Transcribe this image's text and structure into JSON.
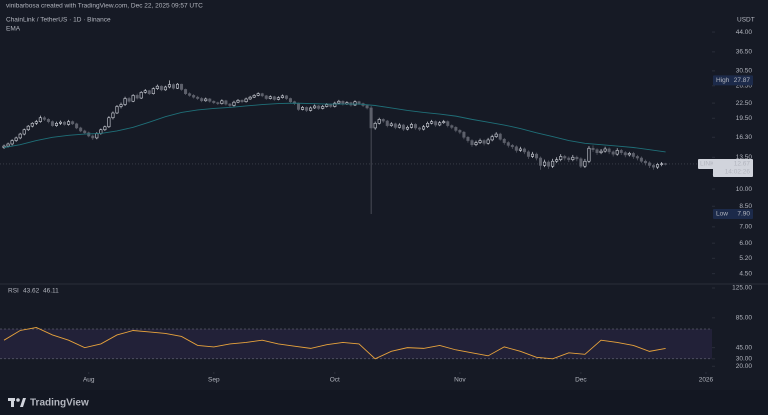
{
  "credit": "vinibarbosa created with TradingView.com, Dec 22, 2025 09:57 UTC",
  "brand": "TradingView",
  "chart_data": [
    {
      "type": "candlestick",
      "title": "ChainLink / TetherUS · 1D · Binance",
      "currency": "USDT",
      "log": true,
      "grid": false,
      "up_color": "#d1d4dc",
      "down_color": "#5d606b",
      "xlim": [
        -1,
        175.5
      ],
      "xticks": [
        {
          "value": 21,
          "label": "Aug"
        },
        {
          "value": 52,
          "label": "Sep"
        },
        {
          "value": 82,
          "label": "Oct"
        },
        {
          "value": 113,
          "label": "Nov"
        },
        {
          "value": 143,
          "label": "Dec"
        },
        {
          "value": 174,
          "label": "2026"
        }
      ],
      "ylim": [
        4.12,
        49.3
      ],
      "yticks": [
        {
          "value": 4.5,
          "label": "4.50"
        },
        {
          "value": 5.2,
          "label": "5.20"
        },
        {
          "value": 6,
          "label": "6.00"
        },
        {
          "value": 7,
          "label": "7.00"
        },
        {
          "value": 8.5,
          "label": "8.50"
        },
        {
          "value": 10,
          "label": "10.00"
        },
        {
          "value": 11.5,
          "label": "11.50"
        },
        {
          "value": 13.5,
          "label": "13.50"
        },
        {
          "value": 16.3,
          "label": "16.30"
        },
        {
          "value": 19.5,
          "label": "19.50"
        },
        {
          "value": 22.5,
          "label": "22.50"
        },
        {
          "value": 26.5,
          "label": "26.50"
        },
        {
          "value": 30.5,
          "label": "30.50"
        },
        {
          "value": 36.5,
          "label": "36.50"
        },
        {
          "value": 44,
          "label": "44.00"
        }
      ],
      "high": {
        "name": "High",
        "value": 27.87
      },
      "low": {
        "name": "Low",
        "value": 7.9,
        "label": "7.90"
      },
      "last": {
        "symbol": "LINKUSDT",
        "value": 12.67,
        "countdown": "14:02:26"
      },
      "ohlc": [
        [
          14.8,
          15.2,
          14.6,
          15.0
        ],
        [
          15.0,
          15.5,
          14.8,
          15.3
        ],
        [
          15.3,
          16.0,
          15.1,
          15.8
        ],
        [
          15.8,
          16.4,
          15.6,
          16.2
        ],
        [
          16.2,
          17.0,
          16.0,
          16.8
        ],
        [
          16.8,
          17.7,
          16.6,
          17.5
        ],
        [
          17.5,
          18.3,
          17.3,
          18.1
        ],
        [
          18.1,
          18.8,
          17.9,
          18.6
        ],
        [
          18.6,
          19.2,
          18.3,
          18.9
        ],
        [
          18.9,
          20.0,
          18.7,
          19.6
        ],
        [
          19.6,
          19.9,
          19.0,
          19.3
        ],
        [
          19.3,
          19.5,
          18.6,
          18.9
        ],
        [
          18.9,
          19.1,
          18.0,
          18.2
        ],
        [
          18.2,
          18.9,
          18.0,
          18.6
        ],
        [
          18.6,
          19.1,
          18.3,
          18.8
        ],
        [
          18.8,
          19.0,
          18.2,
          18.4
        ],
        [
          18.4,
          19.2,
          18.2,
          18.9
        ],
        [
          18.9,
          19.1,
          18.3,
          18.5
        ],
        [
          18.5,
          18.7,
          17.6,
          17.8
        ],
        [
          17.8,
          18.0,
          17.1,
          17.3
        ],
        [
          17.3,
          17.5,
          16.8,
          17.0
        ],
        [
          17.0,
          17.2,
          16.3,
          16.5
        ],
        [
          16.5,
          16.7,
          15.9,
          16.2
        ],
        [
          16.2,
          17.1,
          16.0,
          16.9
        ],
        [
          16.9,
          17.7,
          16.7,
          17.5
        ],
        [
          17.5,
          18.2,
          17.3,
          18.0
        ],
        [
          18.0,
          19.9,
          17.8,
          19.6
        ],
        [
          19.6,
          20.8,
          19.3,
          20.5
        ],
        [
          20.5,
          22.1,
          20.3,
          21.8
        ],
        [
          21.8,
          22.6,
          21.4,
          22.2
        ],
        [
          22.2,
          23.9,
          21.9,
          23.5
        ],
        [
          23.5,
          23.8,
          22.6,
          22.9
        ],
        [
          22.9,
          24.5,
          22.7,
          24.2
        ],
        [
          24.2,
          24.6,
          23.3,
          23.6
        ],
        [
          23.6,
          25.2,
          23.4,
          24.9
        ],
        [
          24.9,
          25.7,
          24.6,
          25.3
        ],
        [
          25.3,
          25.5,
          24.3,
          24.6
        ],
        [
          24.6,
          26.1,
          24.4,
          25.8
        ],
        [
          25.8,
          26.8,
          25.5,
          26.4
        ],
        [
          26.4,
          26.6,
          25.2,
          25.5
        ],
        [
          25.5,
          26.5,
          25.3,
          26.2
        ],
        [
          26.2,
          27.87,
          25.9,
          26.8
        ],
        [
          26.8,
          27.1,
          25.6,
          25.9
        ],
        [
          25.9,
          27.2,
          25.7,
          26.9
        ],
        [
          26.9,
          27.0,
          25.3,
          25.6
        ],
        [
          25.6,
          25.8,
          24.3,
          24.6
        ],
        [
          24.6,
          24.9,
          23.9,
          24.2
        ],
        [
          24.2,
          24.5,
          23.5,
          23.8
        ],
        [
          23.8,
          24.1,
          23.2,
          23.5
        ],
        [
          23.5,
          23.8,
          22.7,
          23.0
        ],
        [
          23.0,
          23.7,
          22.8,
          23.4
        ],
        [
          23.4,
          23.6,
          22.6,
          22.9
        ],
        [
          22.9,
          23.1,
          22.3,
          22.6
        ],
        [
          22.6,
          22.8,
          22.1,
          22.4
        ],
        [
          22.4,
          23.3,
          22.2,
          23.0
        ],
        [
          23.0,
          23.2,
          22.0,
          22.3
        ],
        [
          22.3,
          22.5,
          21.7,
          22.0
        ],
        [
          22.0,
          23.0,
          21.8,
          22.7
        ],
        [
          22.7,
          23.4,
          22.5,
          23.1
        ],
        [
          23.1,
          23.3,
          22.5,
          22.8
        ],
        [
          22.8,
          23.7,
          22.6,
          23.4
        ],
        [
          23.4,
          24.1,
          23.2,
          23.8
        ],
        [
          23.8,
          24.5,
          23.6,
          24.2
        ],
        [
          24.2,
          24.9,
          24.0,
          24.6
        ],
        [
          24.6,
          24.8,
          23.8,
          24.1
        ],
        [
          24.1,
          24.3,
          23.2,
          23.5
        ],
        [
          23.5,
          24.2,
          23.3,
          23.9
        ],
        [
          23.9,
          24.1,
          23.0,
          23.3
        ],
        [
          23.3,
          24.0,
          23.1,
          23.7
        ],
        [
          23.7,
          24.4,
          23.5,
          24.1
        ],
        [
          24.1,
          24.3,
          23.2,
          23.5
        ],
        [
          23.5,
          23.7,
          22.5,
          22.8
        ],
        [
          22.8,
          23.0,
          22.1,
          22.4
        ],
        [
          22.4,
          22.6,
          20.9,
          21.2
        ],
        [
          21.2,
          21.9,
          21.0,
          21.6
        ],
        [
          21.6,
          21.8,
          20.7,
          21.0
        ],
        [
          21.0,
          21.8,
          20.8,
          21.5
        ],
        [
          21.5,
          22.2,
          21.3,
          21.9
        ],
        [
          21.9,
          22.1,
          21.1,
          21.4
        ],
        [
          21.4,
          22.1,
          21.2,
          21.8
        ],
        [
          21.8,
          22.5,
          21.6,
          22.2
        ],
        [
          22.2,
          22.4,
          21.5,
          21.8
        ],
        [
          21.8,
          22.8,
          21.6,
          22.5
        ],
        [
          22.5,
          23.2,
          22.3,
          22.9
        ],
        [
          22.9,
          23.1,
          22.0,
          22.3
        ],
        [
          22.3,
          22.9,
          22.1,
          22.6
        ],
        [
          22.6,
          22.8,
          21.8,
          22.1
        ],
        [
          22.1,
          23.1,
          21.9,
          22.8
        ],
        [
          22.8,
          23.0,
          22.1,
          22.4
        ],
        [
          22.4,
          22.6,
          21.7,
          22.0
        ],
        [
          22.0,
          22.2,
          21.2,
          21.5
        ],
        [
          21.5,
          21.9,
          7.9,
          17.8
        ],
        [
          17.8,
          18.9,
          17.5,
          18.6
        ],
        [
          18.6,
          19.6,
          18.4,
          19.3
        ],
        [
          19.3,
          19.5,
          18.7,
          19.0
        ],
        [
          19.0,
          19.2,
          17.9,
          18.2
        ],
        [
          18.2,
          18.8,
          18.0,
          18.5
        ],
        [
          18.5,
          18.7,
          17.6,
          17.9
        ],
        [
          17.9,
          18.6,
          17.7,
          18.3
        ],
        [
          18.3,
          18.5,
          17.3,
          17.6
        ],
        [
          17.6,
          18.2,
          17.4,
          17.9
        ],
        [
          17.9,
          18.7,
          17.7,
          18.4
        ],
        [
          18.4,
          18.6,
          17.5,
          17.8
        ],
        [
          17.8,
          18.0,
          17.3,
          17.6
        ],
        [
          17.6,
          18.3,
          17.4,
          18.0
        ],
        [
          18.0,
          18.9,
          17.8,
          18.6
        ],
        [
          18.6,
          19.2,
          18.4,
          18.9
        ],
        [
          18.9,
          19.1,
          18.0,
          18.3
        ],
        [
          18.3,
          19.0,
          18.1,
          18.7
        ],
        [
          18.7,
          19.2,
          18.5,
          18.9
        ],
        [
          18.9,
          19.1,
          17.9,
          18.2
        ],
        [
          18.2,
          18.4,
          17.6,
          17.9
        ],
        [
          17.9,
          18.1,
          17.1,
          17.4
        ],
        [
          17.4,
          17.6,
          16.8,
          17.1
        ],
        [
          17.1,
          17.3,
          16.0,
          16.3
        ],
        [
          16.3,
          16.5,
          15.5,
          15.8
        ],
        [
          15.8,
          16.0,
          14.9,
          15.2
        ],
        [
          15.2,
          15.8,
          15.0,
          15.5
        ],
        [
          15.5,
          16.1,
          15.3,
          15.8
        ],
        [
          15.8,
          16.0,
          15.1,
          15.4
        ],
        [
          15.4,
          16.2,
          15.2,
          15.9
        ],
        [
          15.9,
          16.7,
          15.7,
          16.4
        ],
        [
          16.4,
          17.1,
          16.2,
          16.8
        ],
        [
          16.8,
          17.0,
          15.8,
          16.0
        ],
        [
          16.0,
          16.2,
          15.2,
          15.5
        ],
        [
          15.5,
          15.7,
          14.8,
          15.1
        ],
        [
          15.1,
          15.3,
          14.6,
          14.9
        ],
        [
          14.9,
          15.1,
          14.1,
          14.4
        ],
        [
          14.4,
          14.9,
          14.2,
          14.6
        ],
        [
          14.6,
          14.8,
          13.9,
          14.2
        ],
        [
          14.2,
          14.4,
          13.3,
          13.6
        ],
        [
          13.6,
          14.2,
          13.4,
          13.9
        ],
        [
          13.9,
          14.1,
          13.1,
          13.4
        ],
        [
          13.4,
          13.6,
          12.0,
          12.5
        ],
        [
          12.5,
          13.2,
          12.3,
          12.9
        ],
        [
          12.9,
          13.1,
          12.1,
          12.4
        ],
        [
          12.4,
          13.3,
          12.2,
          13.0
        ],
        [
          13.0,
          13.5,
          12.8,
          13.2
        ],
        [
          13.2,
          13.9,
          13.0,
          13.6
        ],
        [
          13.6,
          13.8,
          13.1,
          13.4
        ],
        [
          13.4,
          13.6,
          12.9,
          13.2
        ],
        [
          13.2,
          13.8,
          13.0,
          13.5
        ],
        [
          13.5,
          13.7,
          13.0,
          13.3
        ],
        [
          13.3,
          13.5,
          12.2,
          12.4
        ],
        [
          12.4,
          13.3,
          12.2,
          13.0
        ],
        [
          13.0,
          15.0,
          12.8,
          14.7
        ],
        [
          14.7,
          15.1,
          14.2,
          14.5
        ],
        [
          14.5,
          14.7,
          13.8,
          14.1
        ],
        [
          14.1,
          14.6,
          13.9,
          14.3
        ],
        [
          14.3,
          14.9,
          14.1,
          14.6
        ],
        [
          14.6,
          14.8,
          13.9,
          14.2
        ],
        [
          14.2,
          14.4,
          13.6,
          13.9
        ],
        [
          13.9,
          14.7,
          13.7,
          14.4
        ],
        [
          14.4,
          14.6,
          13.8,
          14.1
        ],
        [
          14.1,
          14.3,
          13.5,
          13.8
        ],
        [
          13.8,
          14.2,
          13.6,
          14.0
        ],
        [
          14.0,
          14.2,
          13.3,
          13.6
        ],
        [
          13.6,
          13.8,
          13.1,
          13.4
        ],
        [
          13.4,
          13.6,
          12.8,
          13.0
        ],
        [
          13.0,
          13.2,
          12.5,
          12.8
        ],
        [
          12.8,
          13.0,
          12.2,
          12.5
        ],
        [
          12.5,
          12.7,
          12.0,
          12.3
        ],
        [
          12.3,
          12.8,
          12.1,
          12.6
        ],
        [
          12.6,
          12.9,
          12.4,
          12.7
        ],
        [
          12.7,
          12.8,
          12.5,
          12.67
        ]
      ],
      "ema": {
        "name": "EMA",
        "color": "#1f6f78",
        "x": [
          0,
          4,
          8,
          12,
          16,
          20,
          24,
          28,
          32,
          36,
          40,
          44,
          48,
          52,
          56,
          60,
          64,
          68,
          72,
          76,
          80,
          84,
          88,
          92,
          96,
          100,
          104,
          108,
          112,
          116,
          120,
          124,
          128,
          132,
          136,
          140,
          144,
          148,
          152,
          156,
          160,
          164
        ],
        "values": [
          14.8,
          15.2,
          15.8,
          16.3,
          16.6,
          16.8,
          16.9,
          17.3,
          17.9,
          18.8,
          19.8,
          20.6,
          21.1,
          21.4,
          21.6,
          21.9,
          22.2,
          22.4,
          22.5,
          22.4,
          22.3,
          22.3,
          22.3,
          22.0,
          21.5,
          21.0,
          20.6,
          20.3,
          19.9,
          19.3,
          18.8,
          18.3,
          17.7,
          17.0,
          16.4,
          15.8,
          15.4,
          15.2,
          15.0,
          14.8,
          14.5,
          14.2
        ]
      }
    },
    {
      "type": "line",
      "title": "RSI",
      "last_values": [
        43.62,
        46.11
      ],
      "ylim": [
        15,
        125
      ],
      "yticks": [
        {
          "value": 20,
          "label": "20.00"
        },
        {
          "value": 30,
          "label": "30.00"
        },
        {
          "value": 45,
          "label": "45.00"
        },
        {
          "value": 85,
          "label": "85.00"
        },
        {
          "value": 125,
          "label": "125.00"
        }
      ],
      "band": [
        30,
        70
      ],
      "series": [
        {
          "name": "RSI",
          "color": "#e8a33c",
          "x": [
            0,
            4,
            8,
            12,
            16,
            20,
            24,
            28,
            32,
            36,
            40,
            44,
            48,
            52,
            56,
            60,
            64,
            68,
            72,
            76,
            80,
            84,
            88,
            92,
            96,
            100,
            104,
            108,
            112,
            116,
            120,
            124,
            128,
            132,
            136,
            140,
            144,
            148,
            152,
            156,
            160,
            164
          ],
          "values": [
            55,
            68,
            72,
            62,
            55,
            45,
            50,
            62,
            68,
            66,
            64,
            60,
            48,
            46,
            50,
            52,
            55,
            50,
            47,
            44,
            49,
            52,
            50,
            30,
            40,
            45,
            44,
            48,
            42,
            38,
            34,
            46,
            40,
            32,
            30,
            38,
            36,
            55,
            52,
            48,
            40,
            44
          ]
        }
      ]
    }
  ]
}
